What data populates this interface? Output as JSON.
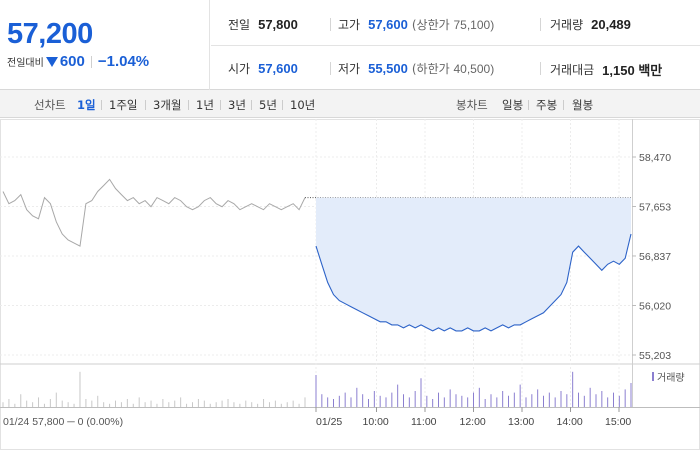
{
  "header": {
    "price": "57,200",
    "change_label": "전일대비",
    "change_value": "600",
    "change_pct": "−1.04%",
    "prev_close": {
      "label": "전일",
      "value": "57,800"
    },
    "high": {
      "label": "고가",
      "value": "57,600",
      "limit_label": "(상한가",
      "limit_value": "75,100)"
    },
    "volume": {
      "label": "거래량",
      "value": "20,489"
    },
    "open": {
      "label": "시가",
      "value": "57,600"
    },
    "low": {
      "label": "저가",
      "value": "55,500",
      "limit_label": "(하한가",
      "limit_value": "40,500)"
    },
    "amount": {
      "label": "거래대금",
      "value": "1,150 백만"
    }
  },
  "tabs": {
    "line_label": "선차트",
    "line_tabs": [
      "1일",
      "1주일",
      "3개월",
      "1년",
      "3년",
      "5년",
      "10년"
    ],
    "active": "1일",
    "candle_label": "봉차트",
    "candle_tabs": [
      "일봉",
      "주봉",
      "월봉"
    ]
  },
  "chart_data": {
    "type": "line",
    "y_ticks": [
      "58,470",
      "57,653",
      "56,837",
      "56,020",
      "55,203"
    ],
    "ylim": [
      55203,
      58470
    ],
    "prev_close_ref": 57800,
    "x_ticks": [
      "01/25",
      "10:00",
      "11:00",
      "12:00",
      "13:00",
      "14:00",
      "15:00"
    ],
    "prev_day_label": "01/24  57,800 ─ 0 (0.00%)",
    "volume_legend": "거래량",
    "prev_series": [
      57900,
      57700,
      57750,
      57850,
      57600,
      57500,
      57450,
      57800,
      57700,
      57400,
      57200,
      57100,
      57050,
      57000,
      57700,
      57750,
      57900,
      58000,
      58100,
      57950,
      57850,
      57750,
      57800,
      57700,
      57750,
      57650,
      57800,
      57750,
      57700,
      57800,
      57750,
      57650,
      57600,
      57650,
      57750,
      57800,
      57700,
      57650,
      57750,
      57700,
      57600,
      57650,
      57700,
      57650,
      57600,
      57700,
      57650,
      57600,
      57650,
      57700,
      57600,
      57800
    ],
    "today_series": [
      57000,
      56700,
      56400,
      56200,
      56100,
      56050,
      56000,
      55950,
      55900,
      55850,
      55800,
      55750,
      55750,
      55700,
      55700,
      55650,
      55700,
      55650,
      55700,
      55650,
      55600,
      55650,
      55600,
      55650,
      55600,
      55600,
      55650,
      55600,
      55600,
      55650,
      55600,
      55650,
      55700,
      55650,
      55700,
      55700,
      55750,
      55800,
      55850,
      55900,
      56000,
      56100,
      56200,
      56400,
      56900,
      57000,
      56900,
      56800,
      56700,
      56600,
      56700,
      56750,
      56700,
      56800,
      57200
    ],
    "volume_prev": [
      3,
      5,
      2,
      8,
      4,
      3,
      6,
      2,
      5,
      9,
      4,
      3,
      2,
      22,
      5,
      4,
      7,
      3,
      2,
      4,
      3,
      5,
      2,
      6,
      3,
      4,
      2,
      5,
      3,
      4,
      6,
      2,
      3,
      5,
      4,
      2,
      3,
      4,
      5,
      3,
      2,
      4,
      3,
      2,
      5,
      3,
      4,
      2,
      3,
      4,
      2,
      6
    ],
    "volume_today": [
      20,
      8,
      6,
      5,
      7,
      9,
      6,
      12,
      8,
      5,
      10,
      7,
      6,
      9,
      14,
      8,
      6,
      10,
      18,
      7,
      5,
      9,
      6,
      11,
      8,
      7,
      6,
      9,
      12,
      5,
      8,
      6,
      10,
      7,
      9,
      14,
      6,
      8,
      11,
      7,
      9,
      6,
      10,
      8,
      22,
      9,
      7,
      12,
      8,
      10,
      6,
      9,
      7,
      11,
      15
    ]
  }
}
